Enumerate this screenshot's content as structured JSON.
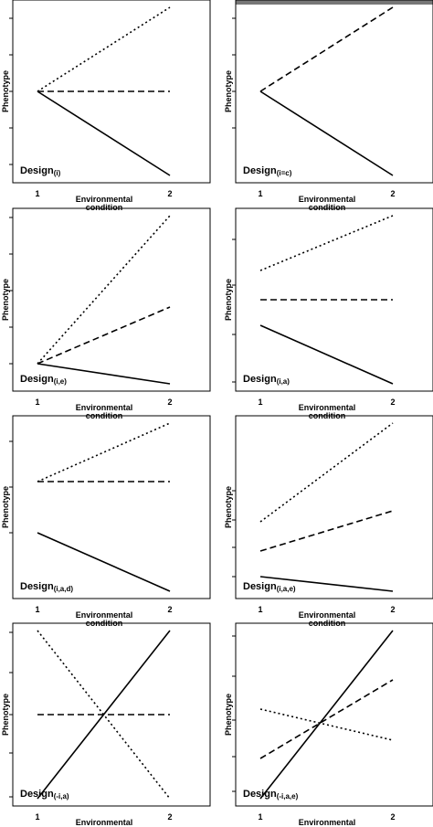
{
  "figure": {
    "ylabel": "Phenotype",
    "xlabel_line1": "Environmental",
    "xlabel_line2": "condition"
  },
  "colors": {
    "line": "#000000",
    "frame": "#000000",
    "top_bar": "#777777"
  },
  "chart_data": [
    {
      "type": "line",
      "design_main": "Design",
      "design_sub": "(i)",
      "x": [
        1,
        2
      ],
      "xtick_labels": [
        "1",
        "2"
      ],
      "ylim": [
        0,
        10
      ],
      "yticks": [
        1,
        3,
        5,
        7,
        9
      ],
      "top_bar": false,
      "series": [
        {
          "style": "dotted",
          "values": [
            5,
            9.6
          ]
        },
        {
          "style": "dashed",
          "values": [
            5,
            5
          ]
        },
        {
          "style": "solid",
          "values": [
            5,
            0.4
          ]
        }
      ]
    },
    {
      "type": "line",
      "design_main": "Design",
      "design_sub": "(i=c)",
      "x": [
        1,
        2
      ],
      "xtick_labels": [
        "1",
        "2"
      ],
      "ylim": [
        0,
        10
      ],
      "yticks": [
        3,
        5,
        7,
        9
      ],
      "top_bar": true,
      "series": [
        {
          "style": "dashed",
          "values": [
            5,
            9.6
          ]
        },
        {
          "style": "solid",
          "values": [
            5,
            0.4
          ]
        }
      ]
    },
    {
      "type": "line",
      "design_main": "Design",
      "design_sub": "(i,e)",
      "x": [
        1,
        2
      ],
      "xtick_labels": [
        "1",
        "2"
      ],
      "ylim": [
        0,
        10
      ],
      "yticks": [
        1.5,
        3.5,
        5.5,
        7.5,
        9.5
      ],
      "top_bar": false,
      "series": [
        {
          "style": "dotted",
          "values": [
            1.5,
            9.6
          ]
        },
        {
          "style": "dashed",
          "values": [
            1.5,
            4.6
          ]
        },
        {
          "style": "solid",
          "values": [
            1.5,
            0.4
          ]
        }
      ]
    },
    {
      "type": "line",
      "design_main": "Design",
      "design_sub": "(i,a)",
      "x": [
        1,
        2
      ],
      "xtick_labels": [
        "1",
        "2"
      ],
      "ylim": [
        0,
        10
      ],
      "yticks": [
        0.5,
        3.1,
        5.8,
        8.3
      ],
      "top_bar": false,
      "series": [
        {
          "style": "dotted",
          "values": [
            6.6,
            9.6
          ]
        },
        {
          "style": "dashed",
          "values": [
            5.0,
            5.0
          ]
        },
        {
          "style": "solid",
          "values": [
            3.6,
            0.4
          ]
        }
      ]
    },
    {
      "type": "line",
      "design_main": "Design",
      "design_sub": "(i,a,d)",
      "x": [
        1,
        2
      ],
      "xtick_labels": [
        "1",
        "2"
      ],
      "ylim": [
        0,
        10
      ],
      "yticks": [
        3.6,
        6.1,
        8.6
      ],
      "top_bar": false,
      "series": [
        {
          "style": "dotted",
          "values": [
            6.4,
            9.6
          ]
        },
        {
          "style": "dashed",
          "values": [
            6.4,
            6.4
          ]
        },
        {
          "style": "solid",
          "values": [
            3.6,
            0.4
          ]
        }
      ]
    },
    {
      "type": "line",
      "design_main": "Design",
      "design_sub": "(i,a,e)",
      "x": [
        1,
        2
      ],
      "xtick_labels": [
        "1",
        "2"
      ],
      "ylim": [
        0,
        10
      ],
      "yticks": [
        1.2,
        2.8,
        4.3,
        5.9
      ],
      "top_bar": false,
      "series": [
        {
          "style": "dotted",
          "values": [
            4.2,
            9.6
          ]
        },
        {
          "style": "dashed",
          "values": [
            2.6,
            4.8
          ]
        },
        {
          "style": "solid",
          "values": [
            1.2,
            0.4
          ]
        }
      ]
    },
    {
      "type": "line",
      "design_main": "Design",
      "design_sub": "(-i,a)",
      "x": [
        1,
        2
      ],
      "xtick_labels": [
        "1",
        "2"
      ],
      "ylim": [
        0,
        10
      ],
      "yticks": [
        0.5,
        2.9,
        5.0,
        7.3,
        9.5
      ],
      "top_bar": false,
      "series": [
        {
          "style": "dotted",
          "values": [
            9.6,
            0.4
          ]
        },
        {
          "style": "dashed",
          "values": [
            5.0,
            5.0
          ]
        },
        {
          "style": "solid",
          "values": [
            0.4,
            9.6
          ]
        }
      ]
    },
    {
      "type": "line",
      "design_main": "Design",
      "design_sub": "(-i,a,e)",
      "x": [
        1,
        2
      ],
      "xtick_labels": [
        "1",
        "2"
      ],
      "ylim": [
        0,
        10
      ],
      "yticks": [
        0.8,
        2.7,
        4.7,
        7.1,
        9.3
      ],
      "top_bar": false,
      "series": [
        {
          "style": "dotted",
          "values": [
            5.3,
            3.6
          ]
        },
        {
          "style": "dashed",
          "values": [
            2.6,
            6.9
          ]
        },
        {
          "style": "solid",
          "values": [
            0.4,
            9.6
          ]
        }
      ]
    }
  ]
}
